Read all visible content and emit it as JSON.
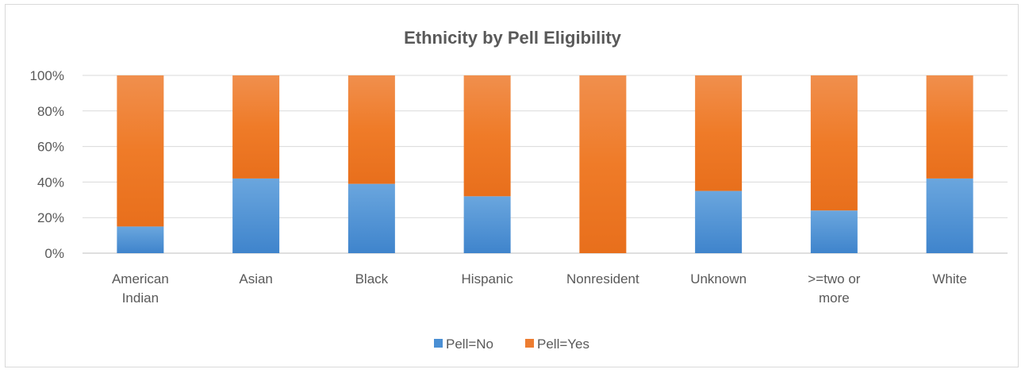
{
  "chart_data": {
    "type": "bar",
    "stacked": "percent",
    "title": "Ethnicity by Pell Eligibility",
    "categories": [
      [
        "American",
        "Indian"
      ],
      [
        "Asian"
      ],
      [
        "Black"
      ],
      [
        "Hispanic"
      ],
      [
        "Nonresident"
      ],
      [
        "Unknown"
      ],
      [
        ">=two or",
        "more"
      ],
      [
        "White"
      ]
    ],
    "series": [
      {
        "name": "Pell=No",
        "color": "#4a8fd4",
        "values": [
          15,
          42,
          39,
          32,
          0,
          35,
          24,
          42
        ]
      },
      {
        "name": "Pell=Yes",
        "color": "#ed7d31",
        "values": [
          85,
          58,
          61,
          68,
          100,
          65,
          76,
          58
        ]
      }
    ],
    "y_ticks": [
      "0%",
      "20%",
      "40%",
      "60%",
      "80%",
      "100%"
    ],
    "ylim": [
      0,
      100
    ],
    "grid": true,
    "legend": "bottom"
  }
}
